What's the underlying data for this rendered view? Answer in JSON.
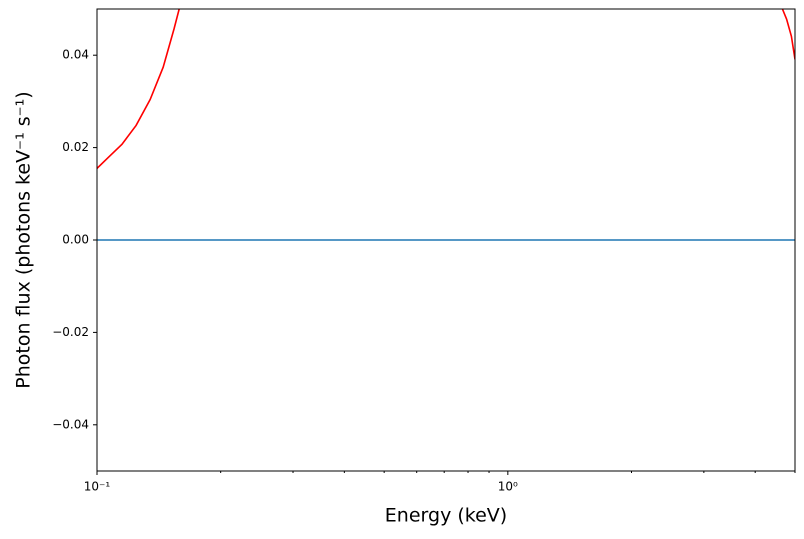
{
  "chart_data": {
    "type": "line",
    "xlabel": "Energy (keV)",
    "ylabel": "Photon flux (photons keV⁻¹ s⁻¹)",
    "xscale": "log",
    "xlim": [
      0.1,
      5
    ],
    "ylim": [
      -0.05,
      0.05
    ],
    "xticks": [
      {
        "value": 0.1,
        "label": "10⁻¹"
      },
      {
        "value": 1,
        "label": "10⁰"
      }
    ],
    "xminor_ticks": [
      0.2,
      0.3,
      0.4,
      0.5,
      0.6,
      0.7,
      0.8,
      0.9,
      2,
      3,
      4,
      5
    ],
    "yticks": [
      {
        "value": -0.04,
        "label": "−0.04"
      },
      {
        "value": -0.02,
        "label": "−0.02"
      },
      {
        "value": 0,
        "label": "0.00"
      },
      0.02,
      0.04
    ],
    "series": [
      {
        "color": "#ff0000",
        "x": [
          0.1,
          0.1063,
          0.115,
          0.1245,
          0.1347,
          0.1449,
          0.154,
          0.1585,
          1,
          4.66,
          4.77,
          4.9,
          5
        ],
        "values": [
          0.0155,
          0.0178,
          0.0207,
          0.0248,
          0.0304,
          0.0374,
          0.0457,
          0.05,
          null,
          0.05,
          0.0478,
          0.0441,
          0.0391
        ]
      },
      {
        "color": "#1f77b4",
        "x": [
          0.1,
          5
        ],
        "values": [
          0,
          0
        ]
      }
    ]
  }
}
